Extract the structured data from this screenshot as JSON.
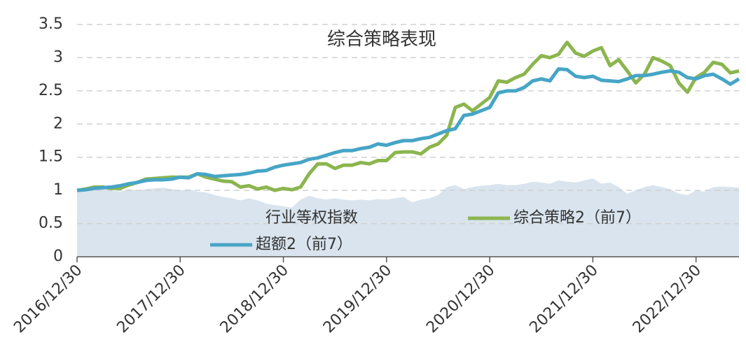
{
  "chart_data": {
    "type": "line",
    "title": "综合策略表现",
    "categories": [
      "2016/12/30",
      null,
      null,
      null,
      null,
      null,
      null,
      null,
      null,
      null,
      null,
      null,
      "2017/12/30",
      null,
      null,
      null,
      null,
      null,
      null,
      null,
      null,
      null,
      null,
      null,
      "2018/12/30",
      null,
      null,
      null,
      null,
      null,
      null,
      null,
      null,
      null,
      null,
      null,
      "2019/12/30",
      null,
      null,
      null,
      null,
      null,
      null,
      null,
      null,
      null,
      null,
      null,
      "2020/12/30",
      null,
      null,
      null,
      null,
      null,
      null,
      null,
      null,
      null,
      null,
      null,
      "2021/12/30",
      null,
      null,
      null,
      null,
      null,
      null,
      null,
      null,
      null,
      null,
      null,
      "2022/12/30",
      null,
      null,
      null,
      null,
      null
    ],
    "series": [
      {
        "name": "行业等权指数",
        "style": "area",
        "color": "#d9e4ee",
        "values": [
          1.0,
          1.0,
          1.02,
          1.02,
          1.0,
          0.98,
          1.02,
          1.0,
          1.02,
          1.03,
          1.04,
          1.02,
          1.0,
          1.02,
          0.98,
          0.97,
          0.93,
          0.9,
          0.88,
          0.85,
          0.88,
          0.85,
          0.8,
          0.78,
          0.76,
          0.74,
          0.86,
          0.92,
          0.88,
          0.86,
          0.88,
          0.86,
          0.85,
          0.86,
          0.85,
          0.87,
          0.86,
          0.88,
          0.9,
          0.82,
          0.86,
          0.88,
          0.93,
          1.05,
          1.08,
          1.02,
          1.05,
          1.07,
          1.08,
          1.1,
          1.08,
          1.08,
          1.1,
          1.13,
          1.12,
          1.1,
          1.15,
          1.13,
          1.12,
          1.15,
          1.18,
          1.1,
          1.12,
          1.05,
          0.95,
          1.0,
          1.05,
          1.08,
          1.05,
          1.02,
          0.95,
          0.93,
          1.0,
          0.98,
          1.05,
          1.06,
          1.05,
          1.04
        ]
      },
      {
        "name": "综合策略2（前7）",
        "style": "line",
        "color": "#8cb54f",
        "values": [
          1.0,
          1.02,
          1.05,
          1.05,
          1.03,
          1.03,
          1.08,
          1.12,
          1.17,
          1.18,
          1.19,
          1.2,
          1.2,
          1.2,
          1.25,
          1.2,
          1.17,
          1.14,
          1.13,
          1.05,
          1.07,
          1.02,
          1.05,
          1.0,
          1.03,
          1.01,
          1.05,
          1.25,
          1.4,
          1.4,
          1.33,
          1.38,
          1.38,
          1.42,
          1.4,
          1.45,
          1.45,
          1.57,
          1.58,
          1.58,
          1.55,
          1.65,
          1.7,
          1.83,
          2.25,
          2.3,
          2.2,
          2.3,
          2.4,
          2.65,
          2.63,
          2.7,
          2.75,
          2.9,
          3.03,
          3.0,
          3.05,
          3.23,
          3.07,
          3.02,
          3.1,
          3.15,
          2.88,
          2.97,
          2.8,
          2.62,
          2.75,
          3.0,
          2.95,
          2.88,
          2.62,
          2.48,
          2.7,
          2.78,
          2.93,
          2.9,
          2.77,
          2.8
        ]
      },
      {
        "name": "超额2（前7）",
        "style": "line",
        "color": "#46a5c6",
        "values": [
          1.0,
          1.01,
          1.03,
          1.04,
          1.05,
          1.07,
          1.1,
          1.12,
          1.15,
          1.16,
          1.16,
          1.17,
          1.2,
          1.19,
          1.25,
          1.24,
          1.21,
          1.22,
          1.23,
          1.24,
          1.26,
          1.29,
          1.3,
          1.35,
          1.38,
          1.4,
          1.42,
          1.47,
          1.49,
          1.53,
          1.57,
          1.6,
          1.6,
          1.63,
          1.65,
          1.7,
          1.68,
          1.72,
          1.75,
          1.75,
          1.78,
          1.8,
          1.85,
          1.9,
          1.93,
          2.13,
          2.15,
          2.2,
          2.25,
          2.47,
          2.5,
          2.5,
          2.55,
          2.65,
          2.68,
          2.65,
          2.83,
          2.82,
          2.72,
          2.7,
          2.72,
          2.66,
          2.65,
          2.64,
          2.68,
          2.73,
          2.73,
          2.75,
          2.78,
          2.8,
          2.78,
          2.7,
          2.68,
          2.73,
          2.75,
          2.68,
          2.6,
          2.68
        ]
      }
    ],
    "ylim": [
      0,
      3.5
    ],
    "yticks": [
      0,
      0.5,
      1,
      1.5,
      2,
      2.5,
      3,
      3.5
    ],
    "grid": true
  }
}
